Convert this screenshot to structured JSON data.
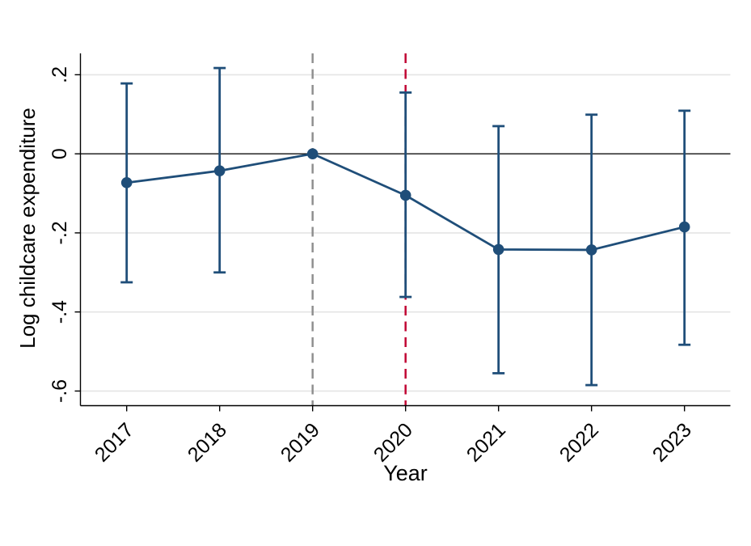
{
  "figure": {
    "background": "#ffffff",
    "text_color": "#000000"
  },
  "chart_data": {
    "type": "line",
    "subtype": "event-study-with-confidence-intervals",
    "title": "",
    "xlabel": "Year",
    "ylabel": "Log childcare expenditure",
    "x": [
      2017,
      2018,
      2019,
      2020,
      2021,
      2022,
      2023
    ],
    "x_tick_labels": [
      "2017",
      "2018",
      "2019",
      "2020",
      "2021",
      "2022",
      "2023"
    ],
    "y_ticks": [
      0.2,
      0,
      -0.2,
      -0.4,
      -0.6
    ],
    "y_tick_labels": [
      ".2",
      "0",
      "-.2",
      "-.4",
      "-.6"
    ],
    "ylim": [
      -0.637,
      0.254
    ],
    "series": [
      {
        "name": "point-estimate",
        "marker": "filled-circle",
        "color": "#1F4E79",
        "values": [
          -0.073,
          -0.043,
          0,
          -0.105,
          -0.242,
          -0.243,
          -0.185
        ],
        "ci_low": [
          -0.325,
          -0.3,
          null,
          -0.362,
          -0.555,
          -0.585,
          -0.483
        ],
        "ci_high": [
          0.178,
          0.217,
          null,
          0.155,
          0.07,
          0.099,
          0.109
        ]
      }
    ],
    "reference_lines": [
      {
        "orientation": "horizontal",
        "value": 0,
        "style": "solid",
        "color": "#000000"
      },
      {
        "orientation": "vertical",
        "value": 2019,
        "style": "dashed",
        "color": "#909090"
      },
      {
        "orientation": "vertical",
        "value": 2020,
        "style": "dashed",
        "color": "#C10534"
      }
    ],
    "grid": true,
    "grid_color": "#E4E4E4",
    "axis_color": "#000000",
    "legend": "none",
    "x_tick_angle": 45,
    "y_tick_angle": 90
  }
}
